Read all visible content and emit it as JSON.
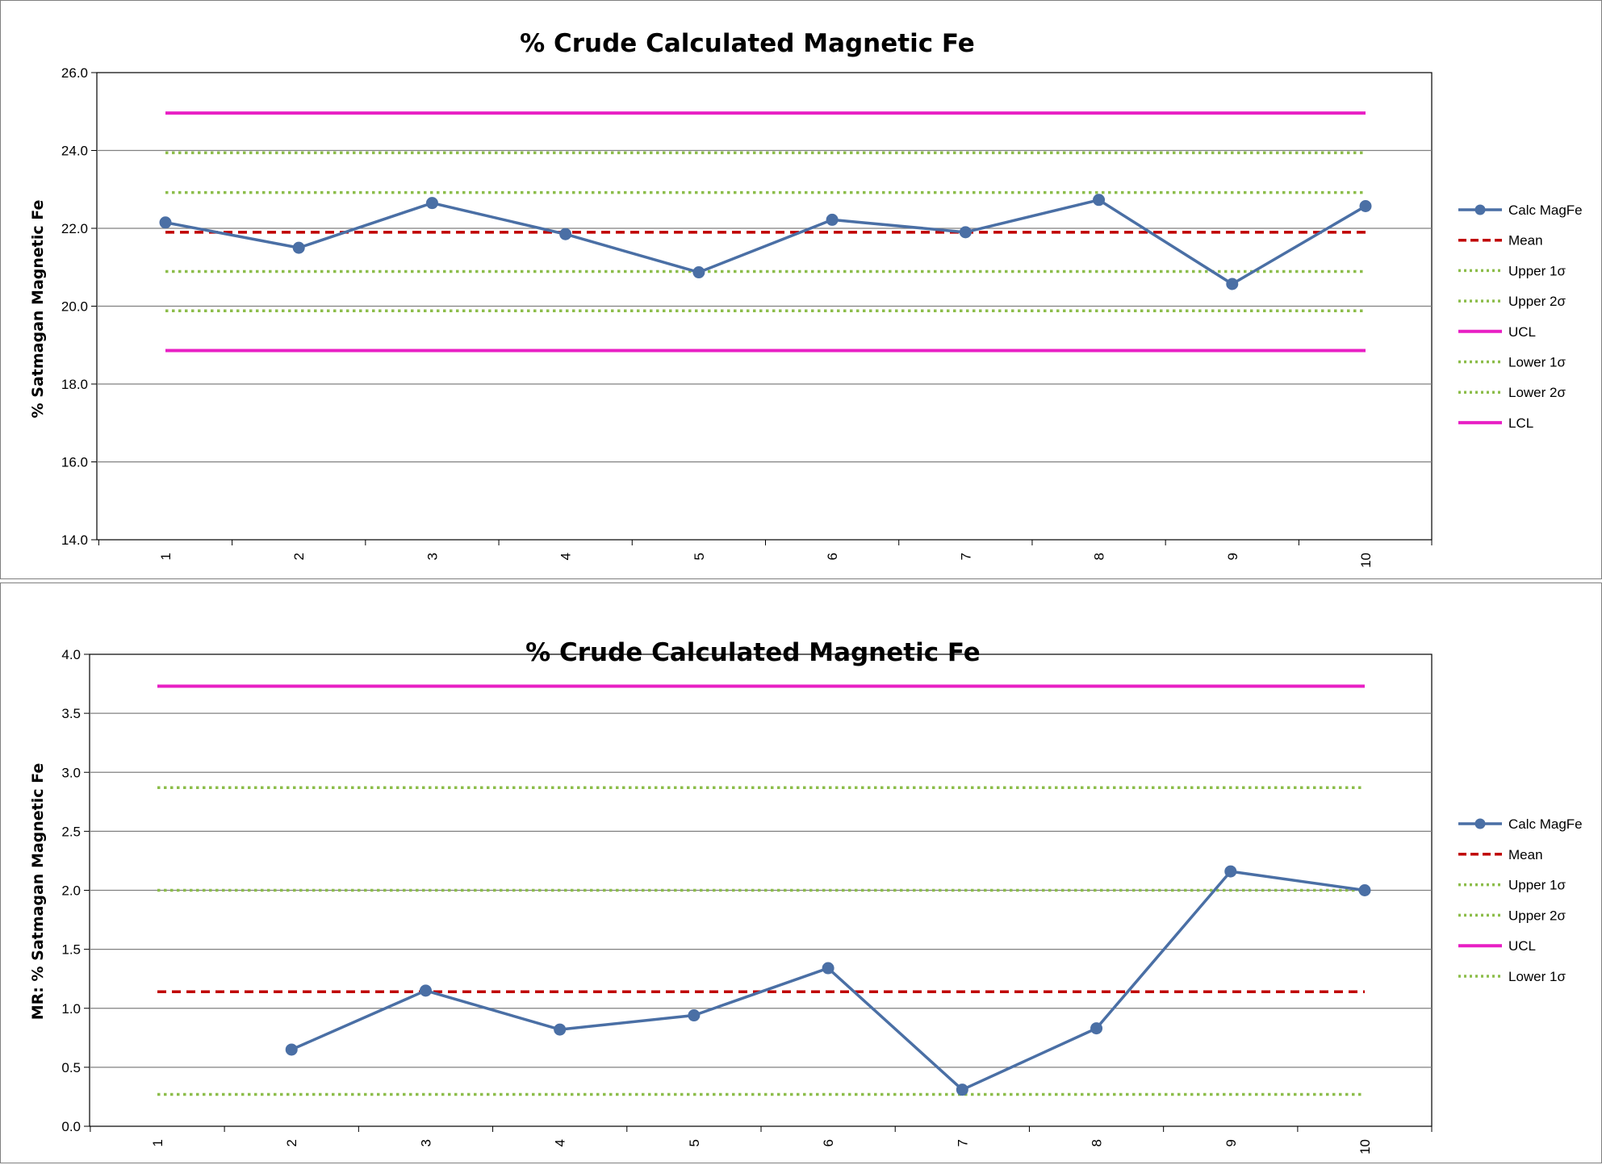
{
  "colors": {
    "series": "#4a6fa5",
    "mean": "#c00000",
    "sigma": "#8cbd4a",
    "limits": "#e81fc4",
    "grid": "#808080"
  },
  "chart_data": [
    {
      "type": "line",
      "title": "% Crude Calculated Magnetic Fe",
      "xlabel": "",
      "ylabel": "% Satmagan Magnetic Fe",
      "x": [
        1,
        2,
        3,
        4,
        5,
        6,
        7,
        8,
        9,
        10
      ],
      "ylim": [
        14.0,
        26.0
      ],
      "yticks": [
        "14.0",
        "16.0",
        "18.0",
        "20.0",
        "22.0",
        "24.0",
        "26.0"
      ],
      "grid": true,
      "legend_position": "right",
      "series": [
        {
          "name": "Calc MagFe",
          "style": "line-marker",
          "color": "#4a6fa5",
          "values": [
            22.15,
            21.5,
            22.65,
            21.85,
            20.87,
            22.22,
            21.9,
            22.73,
            20.57,
            22.57
          ]
        },
        {
          "name": "Mean",
          "style": "dashed",
          "color": "#c00000",
          "values": [
            21.9,
            21.9,
            21.9,
            21.9,
            21.9,
            21.9,
            21.9,
            21.9,
            21.9,
            21.9
          ]
        },
        {
          "name": "Upper 1σ",
          "style": "dotted",
          "color": "#8cbd4a",
          "values": [
            22.92,
            22.92,
            22.92,
            22.92,
            22.92,
            22.92,
            22.92,
            22.92,
            22.92,
            22.92
          ]
        },
        {
          "name": "Upper 2σ",
          "style": "dotted",
          "color": "#8cbd4a",
          "values": [
            23.94,
            23.94,
            23.94,
            23.94,
            23.94,
            23.94,
            23.94,
            23.94,
            23.94,
            23.94
          ]
        },
        {
          "name": "UCL",
          "style": "solid",
          "color": "#e81fc4",
          "values": [
            24.96,
            24.96,
            24.96,
            24.96,
            24.96,
            24.96,
            24.96,
            24.96,
            24.96,
            24.96
          ]
        },
        {
          "name": "Lower 1σ",
          "style": "dotted",
          "color": "#8cbd4a",
          "values": [
            20.89,
            20.89,
            20.89,
            20.89,
            20.89,
            20.89,
            20.89,
            20.89,
            20.89,
            20.89
          ]
        },
        {
          "name": "Lower 2σ",
          "style": "dotted",
          "color": "#8cbd4a",
          "values": [
            19.88,
            19.88,
            19.88,
            19.88,
            19.88,
            19.88,
            19.88,
            19.88,
            19.88,
            19.88
          ]
        },
        {
          "name": "LCL",
          "style": "solid",
          "color": "#e81fc4",
          "values": [
            18.86,
            18.86,
            18.86,
            18.86,
            18.86,
            18.86,
            18.86,
            18.86,
            18.86,
            18.86
          ]
        }
      ]
    },
    {
      "type": "line",
      "title": "% Crude Calculated Magnetic Fe",
      "xlabel": "",
      "ylabel": "MR: % Satmagan Magnetic Fe",
      "x": [
        1,
        2,
        3,
        4,
        5,
        6,
        7,
        8,
        9,
        10
      ],
      "ylim": [
        0.0,
        4.0
      ],
      "yticks": [
        "0.0",
        "0.5",
        "1.0",
        "1.5",
        "2.0",
        "2.5",
        "3.0",
        "3.5",
        "4.0"
      ],
      "grid": true,
      "legend_position": "right",
      "series": [
        {
          "name": "Calc MagFe",
          "style": "line-marker",
          "color": "#4a6fa5",
          "values": [
            null,
            0.65,
            1.15,
            0.82,
            0.94,
            1.34,
            0.31,
            0.83,
            2.16,
            2.0
          ]
        },
        {
          "name": "Mean",
          "style": "dashed",
          "color": "#c00000",
          "values": [
            1.14,
            1.14,
            1.14,
            1.14,
            1.14,
            1.14,
            1.14,
            1.14,
            1.14,
            1.14
          ]
        },
        {
          "name": "Upper 1σ",
          "style": "dotted",
          "color": "#8cbd4a",
          "values": [
            2.0,
            2.0,
            2.0,
            2.0,
            2.0,
            2.0,
            2.0,
            2.0,
            2.0,
            2.0
          ]
        },
        {
          "name": "Upper 2σ",
          "style": "dotted",
          "color": "#8cbd4a",
          "values": [
            2.87,
            2.87,
            2.87,
            2.87,
            2.87,
            2.87,
            2.87,
            2.87,
            2.87,
            2.87
          ]
        },
        {
          "name": "UCL",
          "style": "solid",
          "color": "#e81fc4",
          "values": [
            3.73,
            3.73,
            3.73,
            3.73,
            3.73,
            3.73,
            3.73,
            3.73,
            3.73,
            3.73
          ]
        },
        {
          "name": "Lower 1σ",
          "style": "dotted",
          "color": "#8cbd4a",
          "values": [
            0.27,
            0.27,
            0.27,
            0.27,
            0.27,
            0.27,
            0.27,
            0.27,
            0.27,
            0.27
          ]
        }
      ]
    }
  ]
}
